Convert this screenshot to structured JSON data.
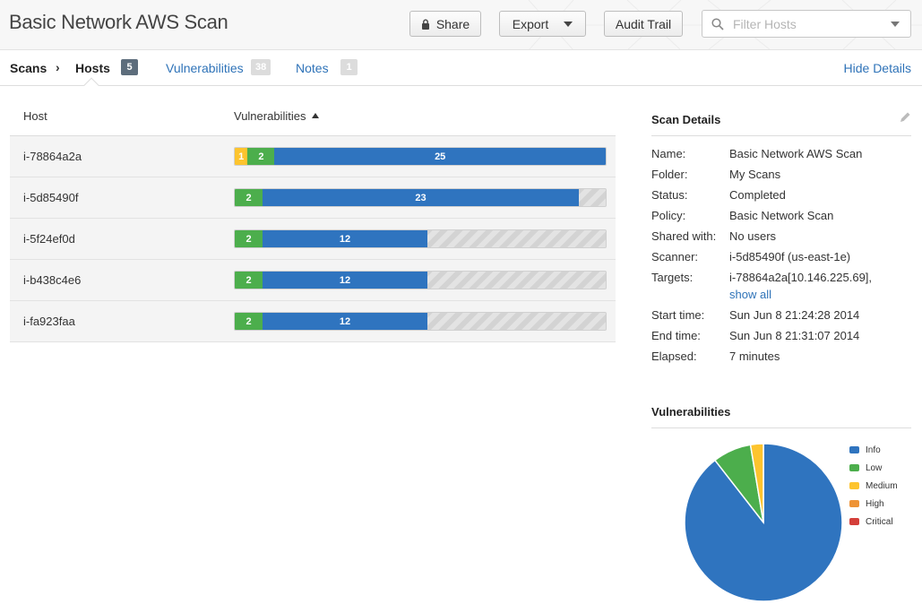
{
  "header": {
    "title": "Basic Network AWS Scan",
    "share_label": "Share",
    "export_label": "Export",
    "audit_label": "Audit Trail",
    "filter_placeholder": "Filter Hosts"
  },
  "tabs": {
    "scans_label": "Scans",
    "hosts_label": "Hosts",
    "hosts_count": "5",
    "vulnerabilities_label": "Vulnerabilities",
    "vulnerabilities_count": "38",
    "notes_label": "Notes",
    "notes_count": "1",
    "hide_details_label": "Hide Details"
  },
  "hosts_table": {
    "host_header": "Host",
    "vulnerabilities_header": "Vulnerabilities",
    "bar_scale_max": 27,
    "rows": [
      {
        "host": "i-78864a2a",
        "segments": [
          {
            "severity": "medium",
            "count": 1
          },
          {
            "severity": "low",
            "count": 2
          },
          {
            "severity": "info",
            "count": 25
          }
        ]
      },
      {
        "host": "i-5d85490f",
        "segments": [
          {
            "severity": "low",
            "count": 2
          },
          {
            "severity": "info",
            "count": 23
          }
        ]
      },
      {
        "host": "i-5f24ef0d",
        "segments": [
          {
            "severity": "low",
            "count": 2
          },
          {
            "severity": "info",
            "count": 12
          }
        ]
      },
      {
        "host": "i-b438c4e6",
        "segments": [
          {
            "severity": "low",
            "count": 2
          },
          {
            "severity": "info",
            "count": 12
          }
        ]
      },
      {
        "host": "i-fa923faa",
        "segments": [
          {
            "severity": "low",
            "count": 2
          },
          {
            "severity": "info",
            "count": 12
          }
        ]
      }
    ]
  },
  "scan_details": {
    "title": "Scan Details",
    "name_label": "Name:",
    "name_value": "Basic Network AWS Scan",
    "folder_label": "Folder:",
    "folder_value": "My Scans",
    "status_label": "Status:",
    "status_value": "Completed",
    "policy_label": "Policy:",
    "policy_value": "Basic Network Scan",
    "shared_label": "Shared with:",
    "shared_value": "No users",
    "scanner_label": "Scanner:",
    "scanner_value": "i-5d85490f (us-east-1e)",
    "targets_label": "Targets:",
    "targets_value": "i-78864a2a[10.146.225.69],",
    "show_all_label": "show all",
    "start_label": "Start time:",
    "start_value": "Sun Jun 8 21:24:28 2014",
    "end_label": "End time:",
    "end_value": "Sun Jun 8 21:31:07 2014",
    "elapsed_label": "Elapsed:",
    "elapsed_value": "7 minutes"
  },
  "vulnerabilities_section": {
    "title": "Vulnerabilities"
  },
  "colors": {
    "info": "#2f74bf",
    "low": "#4cae4c",
    "medium": "#fdc42e",
    "high": "#ee9336",
    "critical": "#d43f3a"
  },
  "chart_data": {
    "type": "pie",
    "slices": [
      {
        "label": "Info",
        "value": 34,
        "color": "#2f74bf"
      },
      {
        "label": "Low",
        "value": 3,
        "color": "#4cae4c"
      },
      {
        "label": "Medium",
        "value": 1,
        "color": "#fdc42e"
      },
      {
        "label": "High",
        "value": 0,
        "color": "#ee9336"
      },
      {
        "label": "Critical",
        "value": 0,
        "color": "#d43f3a"
      }
    ],
    "legend_placement": "right"
  }
}
